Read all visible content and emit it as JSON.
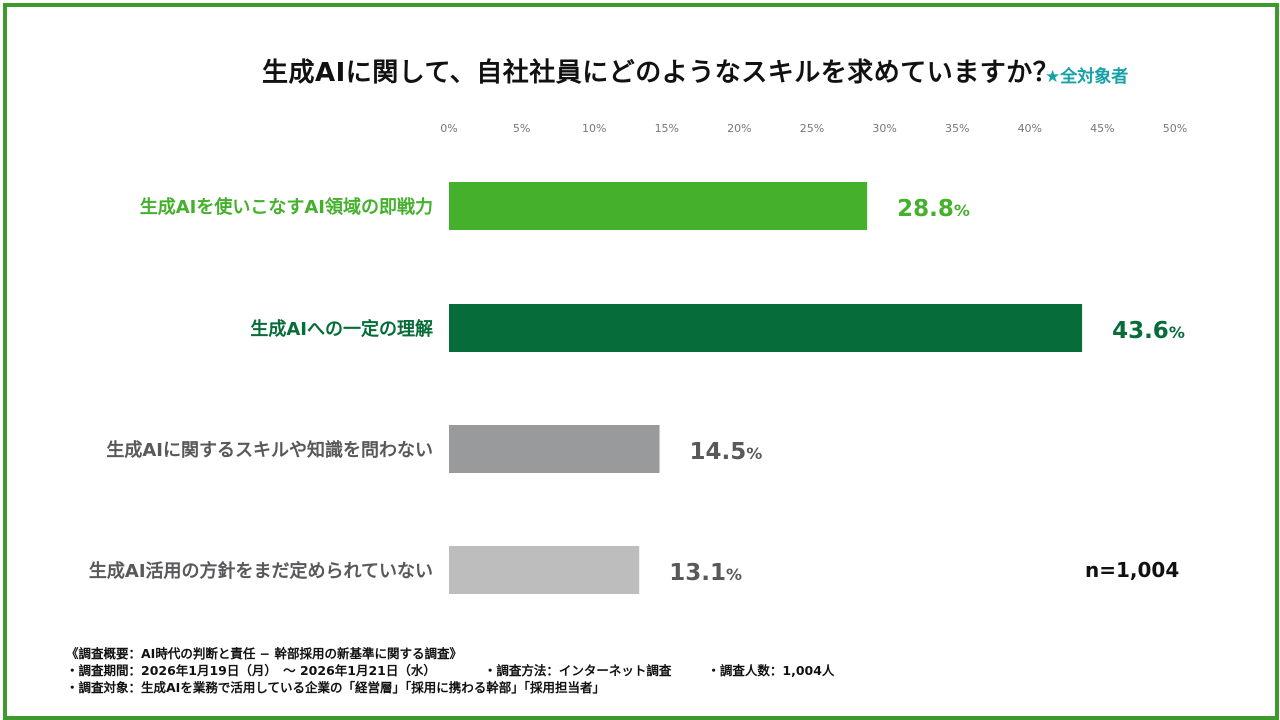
{
  "title": "生成AIに関して、自社社員にどのようなスキルを求めていますか？",
  "target_label": "★全対象者",
  "sample_size": "n=1,004",
  "notes": {
    "overview": "《調査概要：AI時代の判断と責任 − 幹部採用の新基準に関する調査》",
    "period": "・調査期間：2026年1月19日（月）　～ 2026年1月21日（水）",
    "method": "・調査方法：インターネット調査",
    "respondents": "・調査人数：1,004人",
    "subjects": "・調査対象：生成AIを業務で活用している企業の「経営層」「採用に携わる幹部」「採用担当者」"
  },
  "chart_data": {
    "type": "bar",
    "orientation": "horizontal",
    "xlim": [
      0,
      50
    ],
    "tick_values": [
      0,
      5,
      10,
      15,
      20,
      25,
      30,
      35,
      40,
      45,
      50
    ],
    "tick_labels": [
      "0%",
      "5%",
      "10%",
      "15%",
      "20%",
      "25%",
      "30%",
      "35%",
      "40%",
      "45%",
      "50%"
    ],
    "categories": [
      "生成AIを使いこなすAI領域の即戦力",
      "生成AIへの一定の理解",
      "生成AIに関するスキルや知識を問わない",
      "生成AI活用の方針をまだ定められていない"
    ],
    "values": [
      28.8,
      43.6,
      14.5,
      13.1
    ],
    "value_labels": [
      "28.8",
      "43.6",
      "14.5",
      "13.1"
    ],
    "unit": "%",
    "bar_colors": [
      "#45b02c",
      "#066c39",
      "#999a9c",
      "#bcbdbc"
    ],
    "label_colors": [
      "#45b02c",
      "#066c39",
      "#58595b",
      "#58595b"
    ],
    "grid": false
  }
}
